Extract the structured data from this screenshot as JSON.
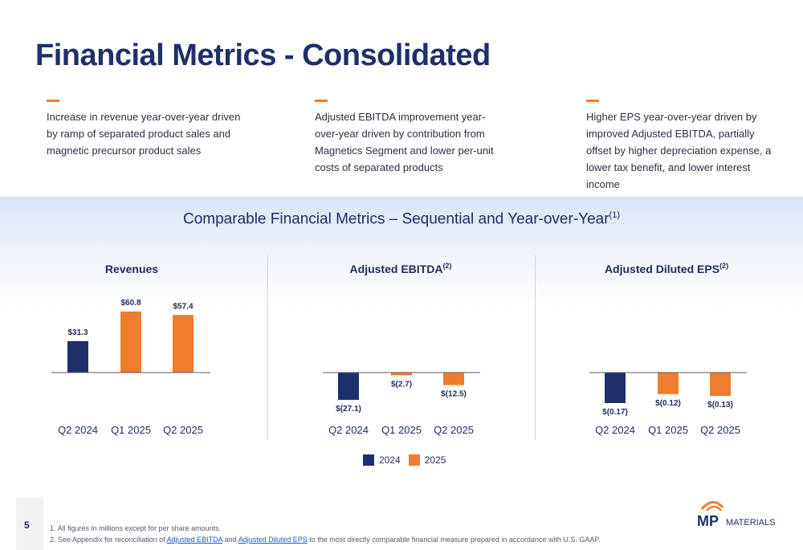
{
  "page": {
    "title": "Financial Metrics - Consolidated",
    "page_number": "5"
  },
  "bullets": [
    {
      "text": "Increase in revenue year-over-year driven by ramp of separated product sales and magnetic precursor product sales"
    },
    {
      "text": "Adjusted EBITDA improvement year-over-year driven by contribution from Magnetics Segment and lower per-unit costs of separated products"
    },
    {
      "text": "Higher EPS year-over-year driven by improved Adjusted EBITDA, partially offset by higher depreciation expense, a lower tax benefit, and lower interest income"
    }
  ],
  "section": {
    "subtitle": "Comparable Financial Metrics – Sequential and Year-over-Year",
    "subtitle_note": "(1)"
  },
  "colors": {
    "year_2024": "#1f2f6b",
    "year_2025": "#ee7d2d",
    "axis": "#555a6a"
  },
  "legend": [
    {
      "label": "2024",
      "color": "#1f2f6b"
    },
    {
      "label": "2025",
      "color": "#ee7d2d"
    }
  ],
  "footnotes": {
    "note1": "1. All figures in millions except for per share amounts.",
    "note2_prefix": "2. See Appendix for reconciliation of ",
    "link1": "Adjusted EBITDA",
    "note2_mid": " and ",
    "link2": "Adjusted Diluted EPS",
    "note2_suffix": " to the most directly comparable financial measure prepared in accordance with U.S. GAAP."
  },
  "logo": {
    "mark": "MP",
    "word": "MATERIALS"
  },
  "chart_data": [
    {
      "type": "bar",
      "title": "Revenues",
      "title_note": "",
      "categories": [
        "Q2 2024",
        "Q1 2025",
        "Q2 2025"
      ],
      "values": [
        31.3,
        60.8,
        57.4
      ],
      "labels": [
        "$31.3",
        "$60.8",
        "$57.4"
      ],
      "colors": [
        "#1f2f6b",
        "#ee7d2d",
        "#ee7d2d"
      ]
    },
    {
      "type": "bar",
      "title": "Adjusted EBITDA",
      "title_note": "(2)",
      "categories": [
        "Q2 2024",
        "Q1 2025",
        "Q2 2025"
      ],
      "values": [
        -27.1,
        -2.7,
        -12.5
      ],
      "labels": [
        "$(27.1)",
        "$(2.7)",
        "$(12.5)"
      ],
      "colors": [
        "#1f2f6b",
        "#ee7d2d",
        "#ee7d2d"
      ]
    },
    {
      "type": "bar",
      "title": "Adjusted Diluted EPS",
      "title_note": "(2)",
      "categories": [
        "Q2 2024",
        "Q1 2025",
        "Q2 2025"
      ],
      "values": [
        -0.17,
        -0.12,
        -0.13
      ],
      "labels": [
        "$(0.17)",
        "$(0.12)",
        "$(0.13)"
      ],
      "colors": [
        "#1f2f6b",
        "#ee7d2d",
        "#ee7d2d"
      ]
    }
  ]
}
